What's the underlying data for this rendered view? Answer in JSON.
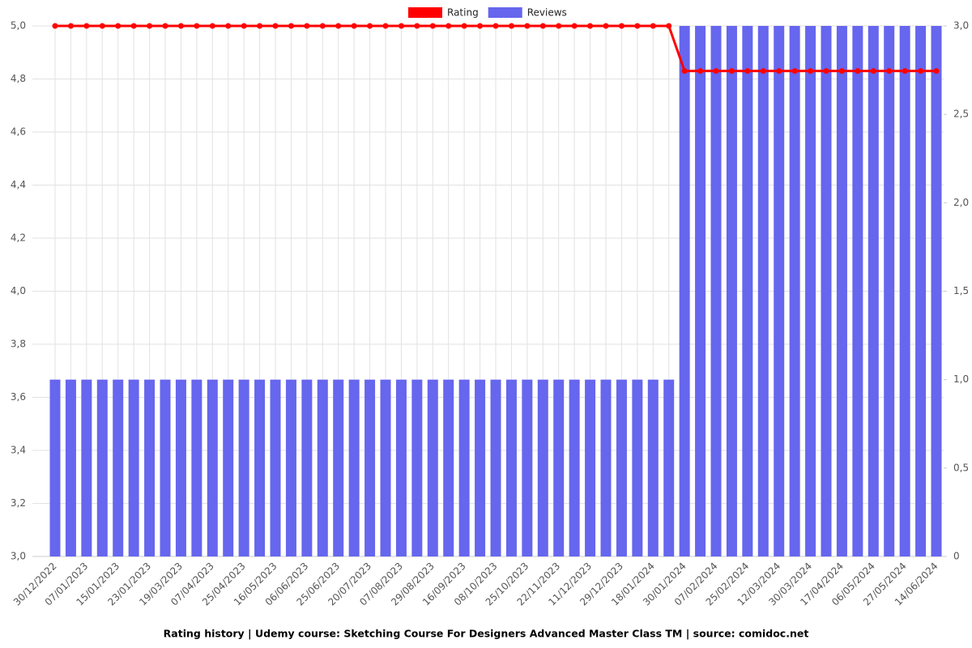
{
  "chart_data": {
    "type": "bar-line",
    "title": "Rating history | Udemy course: Sketching Course For Designers Advanced Master Class TM | source: comidoc.net",
    "categories": [
      "30/12/2022",
      null,
      "07/01/2023",
      null,
      "15/01/2023",
      null,
      "23/01/2023",
      null,
      "19/03/2023",
      null,
      "07/04/2023",
      null,
      "25/04/2023",
      null,
      "16/05/2023",
      null,
      "06/06/2023",
      null,
      "25/06/2023",
      null,
      "20/07/2023",
      null,
      "07/08/2023",
      null,
      "29/08/2023",
      null,
      "16/09/2023",
      null,
      "08/10/2023",
      null,
      "25/10/2023",
      null,
      "22/11/2023",
      null,
      "11/12/2023",
      null,
      "29/12/2023",
      null,
      "18/01/2024",
      null,
      "30/01/2024",
      null,
      "07/02/2024",
      null,
      "25/02/2024",
      null,
      "12/03/2024",
      null,
      "30/03/2024",
      null,
      "17/04/2024",
      null,
      "06/05/2024",
      null,
      "27/05/2024",
      null,
      "14/06/2024"
    ],
    "series": [
      {
        "name": "Rating",
        "color": "#ff0000",
        "kind": "line",
        "values": [
          5,
          5,
          5,
          5,
          5,
          5,
          5,
          5,
          5,
          5,
          5,
          5,
          5,
          5,
          5,
          5,
          5,
          5,
          5,
          5,
          5,
          5,
          5,
          5,
          5,
          5,
          5,
          5,
          5,
          5,
          5,
          5,
          5,
          5,
          5,
          5,
          5,
          5,
          5,
          5,
          4.83,
          4.83,
          4.83,
          4.83,
          4.83,
          4.83,
          4.83,
          4.83,
          4.83,
          4.83,
          4.83,
          4.83,
          4.83,
          4.83,
          4.83,
          4.83,
          4.83
        ]
      },
      {
        "name": "Reviews",
        "color": "#6666ee",
        "kind": "bar",
        "axis": "y2",
        "values": [
          1,
          1,
          1,
          1,
          1,
          1,
          1,
          1,
          1,
          1,
          1,
          1,
          1,
          1,
          1,
          1,
          1,
          1,
          1,
          1,
          1,
          1,
          1,
          1,
          1,
          1,
          1,
          1,
          1,
          1,
          1,
          1,
          1,
          1,
          1,
          1,
          1,
          1,
          1,
          1,
          3,
          3,
          3,
          3,
          3,
          3,
          3,
          3,
          3,
          3,
          3,
          3,
          3,
          3,
          3,
          3,
          3
        ]
      }
    ],
    "ylim": [
      3,
      5
    ],
    "yticks": [
      {
        "value": 3,
        "label": "3,0"
      },
      {
        "value": 3.2,
        "label": "3,2"
      },
      {
        "value": 3.4,
        "label": "3,4"
      },
      {
        "value": 3.6,
        "label": "3,6"
      },
      {
        "value": 3.8,
        "label": "3,8"
      },
      {
        "value": 4,
        "label": "4,0"
      },
      {
        "value": 4.2,
        "label": "4,2"
      },
      {
        "value": 4.4,
        "label": "4,4"
      },
      {
        "value": 4.6,
        "label": "4,6"
      },
      {
        "value": 4.8,
        "label": "4,8"
      },
      {
        "value": 5,
        "label": "5,0"
      }
    ],
    "y2lim": [
      0,
      3
    ],
    "y2ticks": [
      0,
      {
        "value": 0.5,
        "label": "0,5"
      },
      {
        "value": 1,
        "label": "1,0"
      },
      {
        "value": 1.5,
        "label": "1,5"
      },
      {
        "value": 2,
        "label": "2,0"
      },
      {
        "value": 2.5,
        "label": "2,5"
      },
      {
        "value": 3,
        "label": "3,0"
      }
    ],
    "grid": true
  }
}
